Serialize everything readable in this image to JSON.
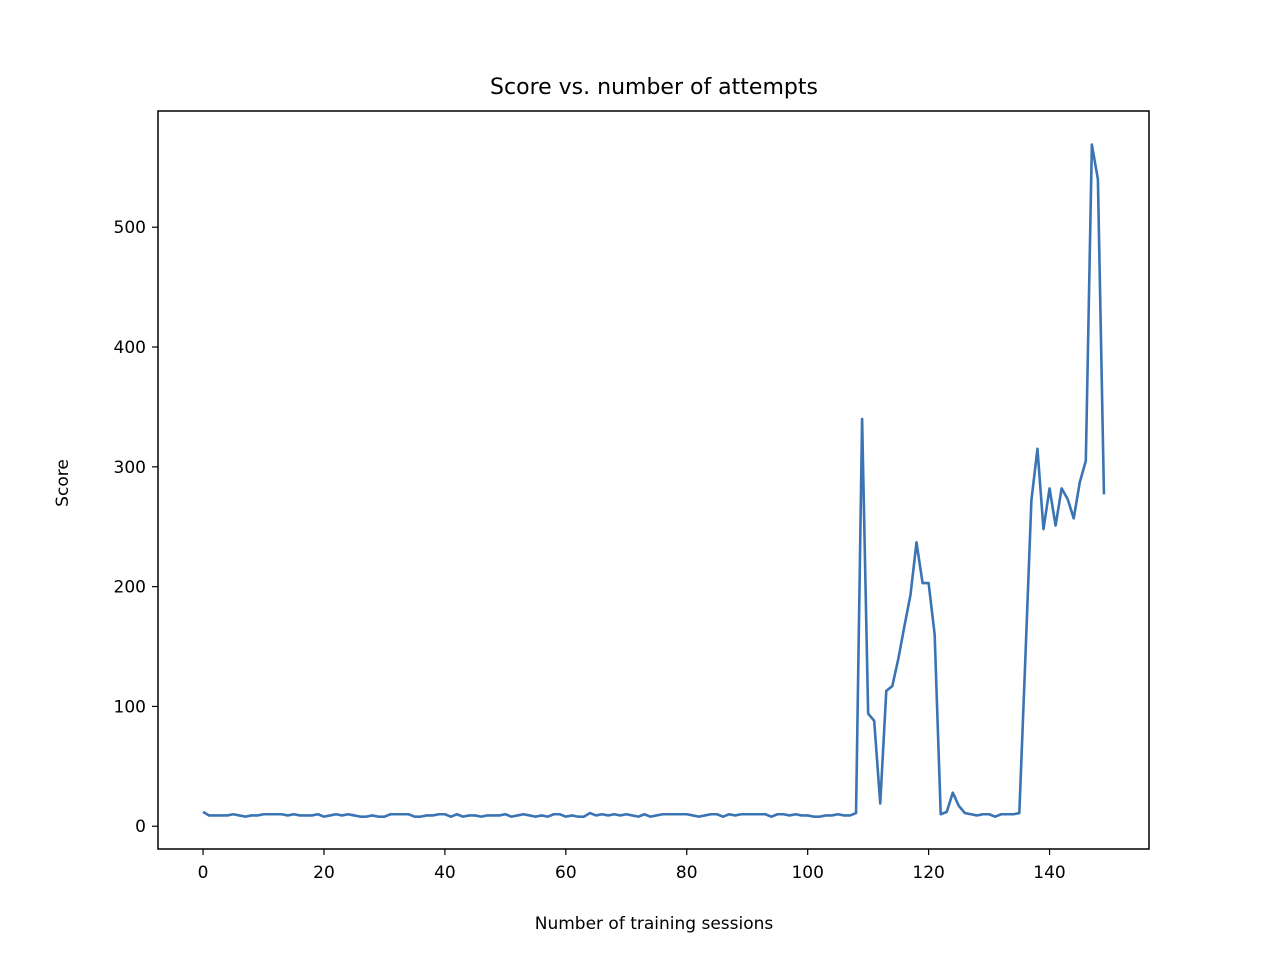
{
  "chart_data": {
    "type": "line",
    "title": "Score vs. number of attempts",
    "xlabel": "Number of training sessions",
    "ylabel": "Score",
    "xlim": [
      -7.45,
      156.45
    ],
    "ylim": [
      -19,
      597
    ],
    "xticks": [
      0,
      20,
      40,
      60,
      80,
      100,
      120,
      140
    ],
    "yticks": [
      0,
      100,
      200,
      300,
      400,
      500
    ],
    "grid": false,
    "series": [
      {
        "color": "#3a74b4",
        "x": [
          0,
          1,
          2,
          3,
          4,
          5,
          6,
          7,
          8,
          9,
          10,
          11,
          12,
          13,
          14,
          15,
          16,
          17,
          18,
          19,
          20,
          21,
          22,
          23,
          24,
          25,
          26,
          27,
          28,
          29,
          30,
          31,
          32,
          33,
          34,
          35,
          36,
          37,
          38,
          39,
          40,
          41,
          42,
          43,
          44,
          45,
          46,
          47,
          48,
          49,
          50,
          51,
          52,
          53,
          54,
          55,
          56,
          57,
          58,
          59,
          60,
          61,
          62,
          63,
          64,
          65,
          66,
          67,
          68,
          69,
          70,
          71,
          72,
          73,
          74,
          75,
          76,
          77,
          78,
          79,
          80,
          81,
          82,
          83,
          84,
          85,
          86,
          87,
          88,
          89,
          90,
          91,
          92,
          93,
          94,
          95,
          96,
          97,
          98,
          99,
          100,
          101,
          102,
          103,
          104,
          105,
          106,
          107,
          108,
          109,
          110,
          111,
          112,
          113,
          114,
          115,
          116,
          117,
          118,
          119,
          120,
          121,
          122,
          123,
          124,
          125,
          126,
          127,
          128,
          129,
          130,
          131,
          132,
          133,
          134,
          135,
          136,
          137,
          138,
          139,
          140,
          141,
          142,
          143,
          144,
          145,
          146,
          147,
          148,
          149
        ],
        "y": [
          12,
          9,
          9,
          9,
          9,
          10,
          9,
          8,
          9,
          9,
          10,
          10,
          10,
          10,
          9,
          10,
          9,
          9,
          9,
          10,
          8,
          9,
          10,
          9,
          10,
          9,
          8,
          8,
          9,
          8,
          8,
          10,
          10,
          10,
          10,
          8,
          8,
          9,
          9,
          10,
          10,
          8,
          10,
          8,
          9,
          9,
          8,
          9,
          9,
          9,
          10,
          8,
          9,
          10,
          9,
          8,
          9,
          8,
          10,
          10,
          8,
          9,
          8,
          8,
          11,
          9,
          10,
          9,
          10,
          9,
          10,
          9,
          8,
          10,
          8,
          9,
          10,
          10,
          10,
          10,
          10,
          9,
          8,
          9,
          10,
          10,
          8,
          10,
          9,
          10,
          10,
          10,
          10,
          10,
          8,
          10,
          10,
          9,
          10,
          9,
          9,
          8,
          8,
          9,
          9,
          10,
          9,
          9,
          11,
          340,
          94,
          88,
          19,
          113,
          117,
          140,
          167,
          193,
          237,
          203,
          203,
          160,
          10,
          12,
          28,
          17,
          11,
          10,
          9,
          10,
          10,
          8,
          10,
          10,
          10,
          11,
          140,
          272,
          315,
          248,
          282,
          251,
          282,
          273,
          257,
          287,
          305,
          569,
          540,
          277
        ]
      }
    ]
  }
}
